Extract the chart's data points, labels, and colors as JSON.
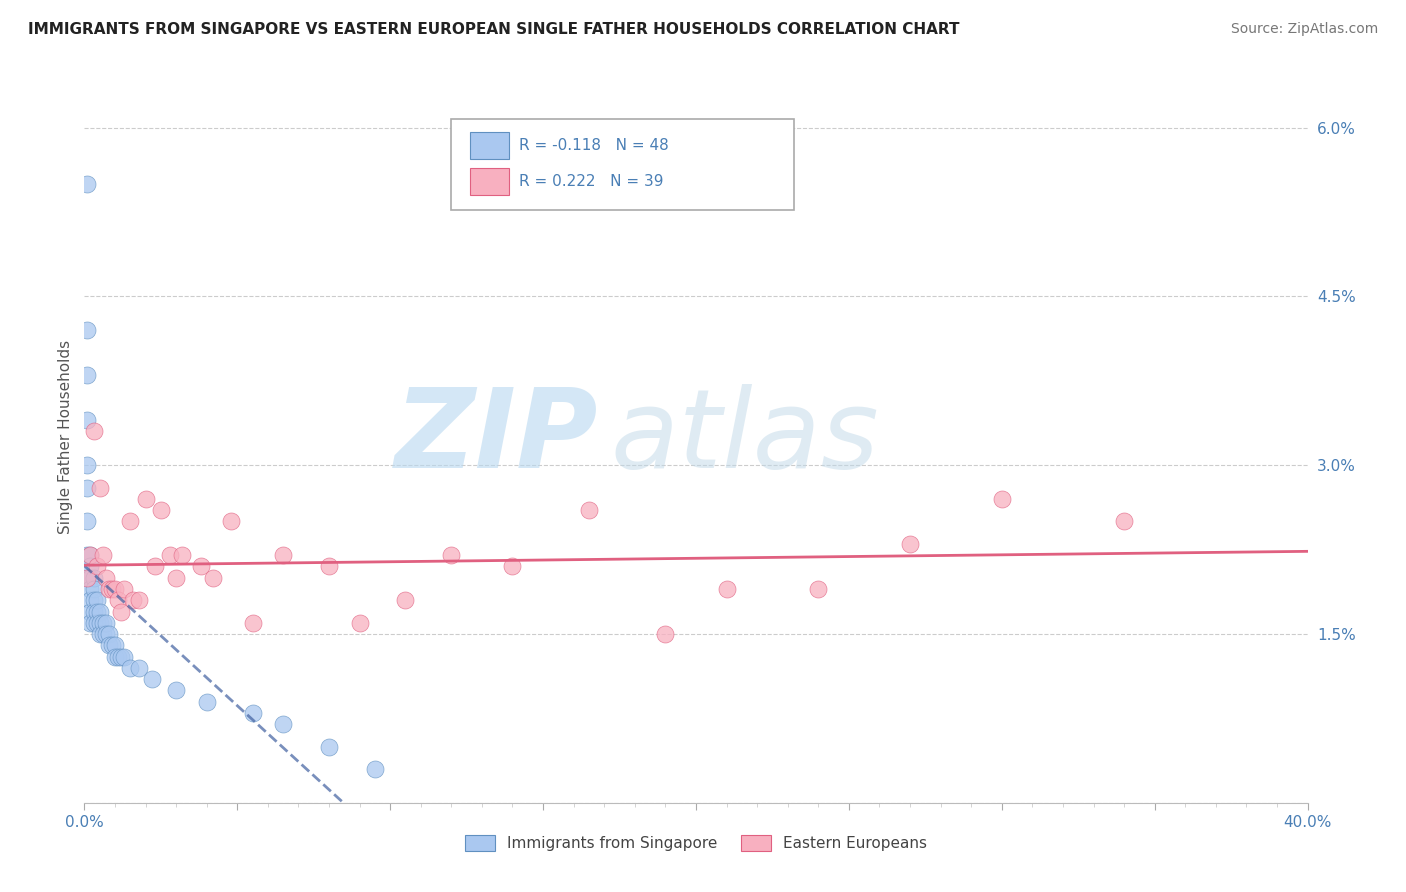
{
  "title": "IMMIGRANTS FROM SINGAPORE VS EASTERN EUROPEAN SINGLE FATHER HOUSEHOLDS CORRELATION CHART",
  "source": "Source: ZipAtlas.com",
  "ylabel": "Single Father Households",
  "xlim": [
    0,
    0.4
  ],
  "ylim": [
    0,
    0.065
  ],
  "ytick_positions": [
    0.0,
    0.015,
    0.03,
    0.045,
    0.06
  ],
  "ytick_labels": [
    "",
    "1.5%",
    "3.0%",
    "4.5%",
    "6.0%"
  ],
  "xtick_positions": [
    0.0,
    0.05,
    0.1,
    0.15,
    0.2,
    0.25,
    0.3,
    0.35,
    0.4
  ],
  "xtick_labels": [
    "0.0%",
    "",
    "",
    "",
    "",
    "",
    "",
    "",
    "40.0%"
  ],
  "series1_label": "Immigrants from Singapore",
  "series1_R": -0.118,
  "series1_N": 48,
  "series1_color": "#aac8f0",
  "series1_edge_color": "#6090c0",
  "series1_line_color": "#4060a0",
  "series2_label": "Eastern Europeans",
  "series2_R": 0.222,
  "series2_N": 39,
  "series2_color": "#f8b0c0",
  "series2_edge_color": "#e06080",
  "series2_line_color": "#e06080",
  "background_color": "#ffffff",
  "grid_color": "#cccccc",
  "watermark_zip_color": "#b8d8f0",
  "watermark_atlas_color": "#c0d8e8",
  "series1_x": [
    0.001,
    0.001,
    0.001,
    0.001,
    0.001,
    0.001,
    0.001,
    0.001,
    0.001,
    0.002,
    0.002,
    0.002,
    0.002,
    0.002,
    0.002,
    0.002,
    0.003,
    0.003,
    0.003,
    0.003,
    0.003,
    0.004,
    0.004,
    0.004,
    0.005,
    0.005,
    0.005,
    0.006,
    0.006,
    0.007,
    0.007,
    0.008,
    0.008,
    0.009,
    0.01,
    0.01,
    0.011,
    0.012,
    0.013,
    0.015,
    0.018,
    0.022,
    0.03,
    0.04,
    0.055,
    0.065,
    0.08,
    0.095
  ],
  "series1_y": [
    0.055,
    0.042,
    0.038,
    0.034,
    0.03,
    0.028,
    0.025,
    0.022,
    0.02,
    0.022,
    0.021,
    0.02,
    0.019,
    0.018,
    0.017,
    0.016,
    0.02,
    0.019,
    0.018,
    0.017,
    0.016,
    0.018,
    0.017,
    0.016,
    0.017,
    0.016,
    0.015,
    0.016,
    0.015,
    0.016,
    0.015,
    0.015,
    0.014,
    0.014,
    0.014,
    0.013,
    0.013,
    0.013,
    0.013,
    0.012,
    0.012,
    0.011,
    0.01,
    0.009,
    0.008,
    0.007,
    0.005,
    0.003
  ],
  "series2_x": [
    0.001,
    0.002,
    0.003,
    0.004,
    0.005,
    0.006,
    0.007,
    0.008,
    0.009,
    0.01,
    0.011,
    0.012,
    0.013,
    0.015,
    0.016,
    0.018,
    0.02,
    0.023,
    0.025,
    0.028,
    0.03,
    0.032,
    0.038,
    0.042,
    0.048,
    0.055,
    0.065,
    0.08,
    0.09,
    0.105,
    0.12,
    0.14,
    0.165,
    0.19,
    0.21,
    0.24,
    0.27,
    0.3,
    0.34
  ],
  "series2_y": [
    0.02,
    0.022,
    0.033,
    0.021,
    0.028,
    0.022,
    0.02,
    0.019,
    0.019,
    0.019,
    0.018,
    0.017,
    0.019,
    0.025,
    0.018,
    0.018,
    0.027,
    0.021,
    0.026,
    0.022,
    0.02,
    0.022,
    0.021,
    0.02,
    0.025,
    0.016,
    0.022,
    0.021,
    0.016,
    0.018,
    0.022,
    0.021,
    0.026,
    0.015,
    0.019,
    0.019,
    0.023,
    0.027,
    0.025
  ]
}
